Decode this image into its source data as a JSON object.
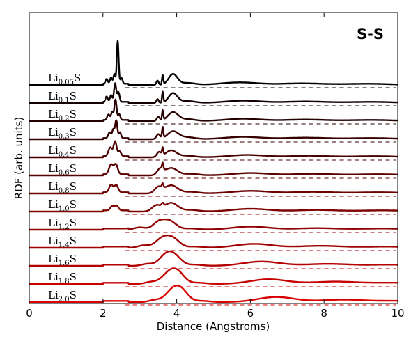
{
  "chart_data": {
    "type": "line",
    "title": "S-S",
    "xlabel": "Distance (Angstroms)",
    "ylabel": "RDF (arb. units)",
    "xlim": [
      0,
      10
    ],
    "x_ticks": [
      0,
      2,
      4,
      6,
      8,
      10
    ],
    "x_tick_labels": [
      "0",
      "2",
      "4",
      "6",
      "8",
      "10"
    ],
    "baseline_style": "dashed",
    "series": [
      {
        "name": "Li0.05S",
        "base": "Li",
        "sub": "0.05",
        "tail": "S",
        "color": "#000000",
        "peaks": [
          [
            2.1,
            0.25,
            0.03
          ],
          [
            2.22,
            0.32,
            0.03
          ],
          [
            2.31,
            0.5,
            0.025
          ],
          [
            2.4,
            2.2,
            0.025
          ],
          [
            2.5,
            0.3,
            0.03
          ],
          [
            3.48,
            0.22,
            0.03
          ],
          [
            3.62,
            0.48,
            0.018
          ],
          [
            3.9,
            0.55,
            0.12
          ],
          [
            4.3,
            0.1,
            0.2
          ],
          [
            5.7,
            0.13,
            0.5
          ],
          [
            7.4,
            0.08,
            0.6
          ],
          [
            9.2,
            0.06,
            0.6
          ]
        ]
      },
      {
        "name": "Li0.1S",
        "base": "Li",
        "sub": "0.1",
        "tail": "S",
        "color": "#120000",
        "peaks": [
          [
            2.1,
            0.28,
            0.03
          ],
          [
            2.22,
            0.35,
            0.03
          ],
          [
            2.33,
            0.95,
            0.03
          ],
          [
            2.42,
            0.5,
            0.03
          ],
          [
            3.48,
            0.2,
            0.03
          ],
          [
            3.62,
            0.55,
            0.018
          ],
          [
            3.9,
            0.5,
            0.12
          ],
          [
            4.3,
            0.1,
            0.2
          ],
          [
            5.8,
            0.12,
            0.5
          ],
          [
            7.5,
            0.08,
            0.6
          ],
          [
            9.3,
            0.06,
            0.6
          ]
        ]
      },
      {
        "name": "Li0.2S",
        "base": "Li",
        "sub": "0.2",
        "tail": "S",
        "color": "#240000",
        "peaks": [
          [
            2.15,
            0.28,
            0.035
          ],
          [
            2.25,
            0.4,
            0.03
          ],
          [
            2.34,
            1.05,
            0.03
          ],
          [
            2.44,
            0.3,
            0.03
          ],
          [
            3.5,
            0.22,
            0.04
          ],
          [
            3.62,
            0.5,
            0.018
          ],
          [
            3.9,
            0.45,
            0.14
          ],
          [
            4.3,
            0.1,
            0.2
          ],
          [
            5.8,
            0.12,
            0.5
          ],
          [
            7.5,
            0.08,
            0.6
          ],
          [
            9.3,
            0.06,
            0.6
          ]
        ]
      },
      {
        "name": "Li0.3S",
        "base": "Li",
        "sub": "0.3",
        "tail": "S",
        "color": "#360000",
        "peaks": [
          [
            2.18,
            0.3,
            0.035
          ],
          [
            2.28,
            0.45,
            0.03
          ],
          [
            2.36,
            0.9,
            0.03
          ],
          [
            2.46,
            0.3,
            0.03
          ],
          [
            3.5,
            0.25,
            0.05
          ],
          [
            3.62,
            0.55,
            0.018
          ],
          [
            3.9,
            0.4,
            0.15
          ],
          [
            4.3,
            0.1,
            0.2
          ],
          [
            5.8,
            0.12,
            0.5
          ],
          [
            7.5,
            0.08,
            0.6
          ],
          [
            9.3,
            0.06,
            0.6
          ]
        ]
      },
      {
        "name": "Li0.4S",
        "base": "Li",
        "sub": "0.4",
        "tail": "S",
        "color": "#480000",
        "peaks": [
          [
            2.2,
            0.45,
            0.05
          ],
          [
            2.33,
            0.75,
            0.04
          ],
          [
            2.45,
            0.25,
            0.04
          ],
          [
            3.52,
            0.25,
            0.06
          ],
          [
            3.62,
            0.35,
            0.018
          ],
          [
            3.85,
            0.35,
            0.15
          ],
          [
            4.3,
            0.08,
            0.2
          ],
          [
            5.9,
            0.12,
            0.5
          ],
          [
            7.6,
            0.08,
            0.6
          ],
          [
            9.4,
            0.06,
            0.6
          ]
        ]
      },
      {
        "name": "Li0.6S",
        "base": "Li",
        "sub": "0.6",
        "tail": "S",
        "color": "#5a0000",
        "peaks": [
          [
            2.22,
            0.5,
            0.055
          ],
          [
            2.35,
            0.5,
            0.05
          ],
          [
            3.55,
            0.3,
            0.08
          ],
          [
            3.62,
            0.3,
            0.018
          ],
          [
            3.85,
            0.38,
            0.17
          ],
          [
            4.4,
            0.08,
            0.2
          ],
          [
            6.0,
            0.12,
            0.5
          ],
          [
            7.7,
            0.08,
            0.6
          ],
          [
            9.5,
            0.06,
            0.6
          ]
        ]
      },
      {
        "name": "Li0.8S",
        "base": "Li",
        "sub": "0.8",
        "tail": "S",
        "color": "#6c0000",
        "peaks": [
          [
            2.22,
            0.4,
            0.05
          ],
          [
            2.36,
            0.38,
            0.05
          ],
          [
            3.5,
            0.3,
            0.1
          ],
          [
            3.62,
            0.2,
            0.02
          ],
          [
            3.85,
            0.42,
            0.18
          ],
          [
            4.4,
            0.08,
            0.2
          ],
          [
            6.0,
            0.13,
            0.5
          ],
          [
            7.7,
            0.08,
            0.6
          ],
          [
            9.5,
            0.06,
            0.6
          ]
        ]
      },
      {
        "name": "Li1.0S",
        "base": "Li",
        "sub": "1.0",
        "tail": "S",
        "color": "#7e0000",
        "peaks": [
          [
            2.25,
            0.22,
            0.05
          ],
          [
            2.37,
            0.24,
            0.05
          ],
          [
            3.45,
            0.3,
            0.12
          ],
          [
            3.62,
            0.15,
            0.03
          ],
          [
            3.85,
            0.45,
            0.18
          ],
          [
            4.4,
            0.08,
            0.2
          ],
          [
            6.0,
            0.14,
            0.5
          ],
          [
            7.8,
            0.08,
            0.6
          ],
          [
            9.6,
            0.06,
            0.6
          ]
        ]
      },
      {
        "name": "Li1.2S",
        "base": "Li",
        "sub": "1.2",
        "tail": "S",
        "color": "#900000",
        "peaks": [
          [
            3.0,
            0.12,
            0.15
          ],
          [
            3.5,
            0.35,
            0.15
          ],
          [
            3.8,
            0.45,
            0.18
          ],
          [
            4.4,
            0.06,
            0.2
          ],
          [
            6.0,
            0.16,
            0.5
          ],
          [
            7.8,
            0.08,
            0.6
          ],
          [
            9.6,
            0.06,
            0.6
          ]
        ]
      },
      {
        "name": "Li1.4S",
        "base": "Li",
        "sub": "1.4",
        "tail": "S",
        "color": "#a20000",
        "peaks": [
          [
            3.1,
            0.12,
            0.15
          ],
          [
            3.6,
            0.45,
            0.18
          ],
          [
            3.9,
            0.45,
            0.18
          ],
          [
            4.5,
            0.06,
            0.2
          ],
          [
            6.1,
            0.2,
            0.5
          ],
          [
            7.9,
            0.1,
            0.6
          ],
          [
            9.7,
            0.06,
            0.6
          ]
        ]
      },
      {
        "name": "Li1.6S",
        "base": "Li",
        "sub": "1.6",
        "tail": "S",
        "color": "#b40000",
        "peaks": [
          [
            3.2,
            0.1,
            0.15
          ],
          [
            3.7,
            0.5,
            0.18
          ],
          [
            3.95,
            0.45,
            0.18
          ],
          [
            4.5,
            0.06,
            0.2
          ],
          [
            6.3,
            0.22,
            0.5
          ],
          [
            8.1,
            0.1,
            0.6
          ],
          [
            9.8,
            0.06,
            0.6
          ]
        ]
      },
      {
        "name": "Li1.8S",
        "base": "Li",
        "sub": "1.8",
        "tail": "S",
        "color": "#c60000",
        "peaks": [
          [
            3.3,
            0.1,
            0.15
          ],
          [
            3.8,
            0.55,
            0.2
          ],
          [
            4.05,
            0.45,
            0.18
          ],
          [
            4.6,
            0.06,
            0.2
          ],
          [
            6.5,
            0.24,
            0.5
          ],
          [
            8.3,
            0.12,
            0.6
          ],
          [
            9.9,
            0.06,
            0.6
          ]
        ]
      },
      {
        "name": "Li2.0S",
        "base": "Li",
        "sub": "2.0",
        "tail": "S",
        "color": "#d80000",
        "peaks": [
          [
            3.4,
            0.1,
            0.15
          ],
          [
            3.9,
            0.6,
            0.2
          ],
          [
            4.15,
            0.45,
            0.18
          ],
          [
            4.7,
            0.06,
            0.2
          ],
          [
            6.7,
            0.26,
            0.5
          ],
          [
            8.5,
            0.12,
            0.6
          ],
          [
            10.0,
            0.06,
            0.6
          ]
        ]
      }
    ]
  }
}
